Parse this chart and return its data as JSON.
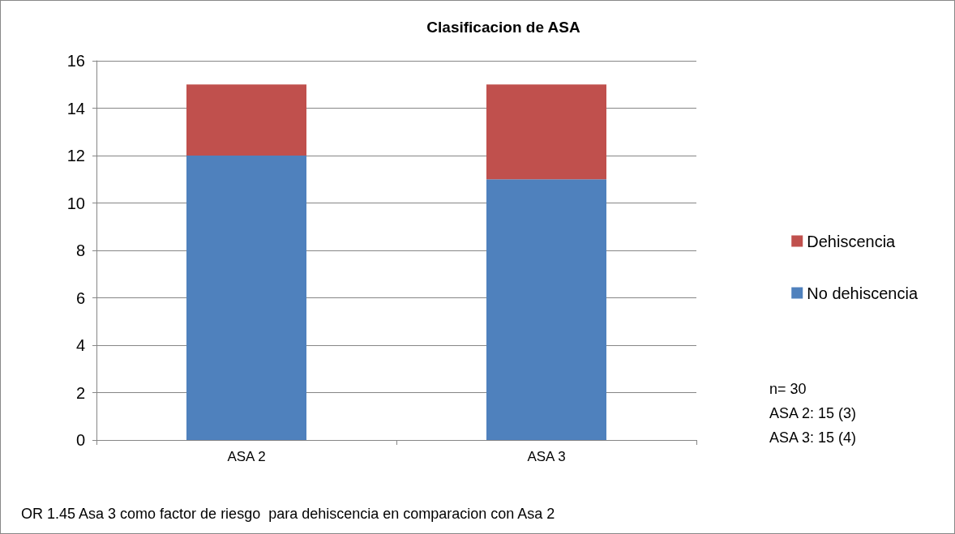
{
  "chart_data": {
    "type": "bar",
    "title": "Clasificacion de ASA",
    "categories": [
      "ASA 2",
      "ASA 3"
    ],
    "stacked": true,
    "series": [
      {
        "name": "No dehiscencia",
        "color": "#4f81bd",
        "values": [
          12,
          11
        ]
      },
      {
        "name": "Dehiscencia",
        "color": "#c0504d",
        "values": [
          3,
          4
        ]
      }
    ],
    "ylim": [
      0,
      16
    ],
    "yticks": [
      0,
      2,
      4,
      6,
      8,
      10,
      12,
      14,
      16
    ],
    "grid": "y",
    "legend": "right",
    "annotations": [
      "n= 30",
      "ASA 2: 15 (3)",
      "ASA 3: 15 (4)",
      "OR 1.45 Asa 3 como factor de riesgo  para dehiscencia en comparacion con Asa 2"
    ]
  }
}
